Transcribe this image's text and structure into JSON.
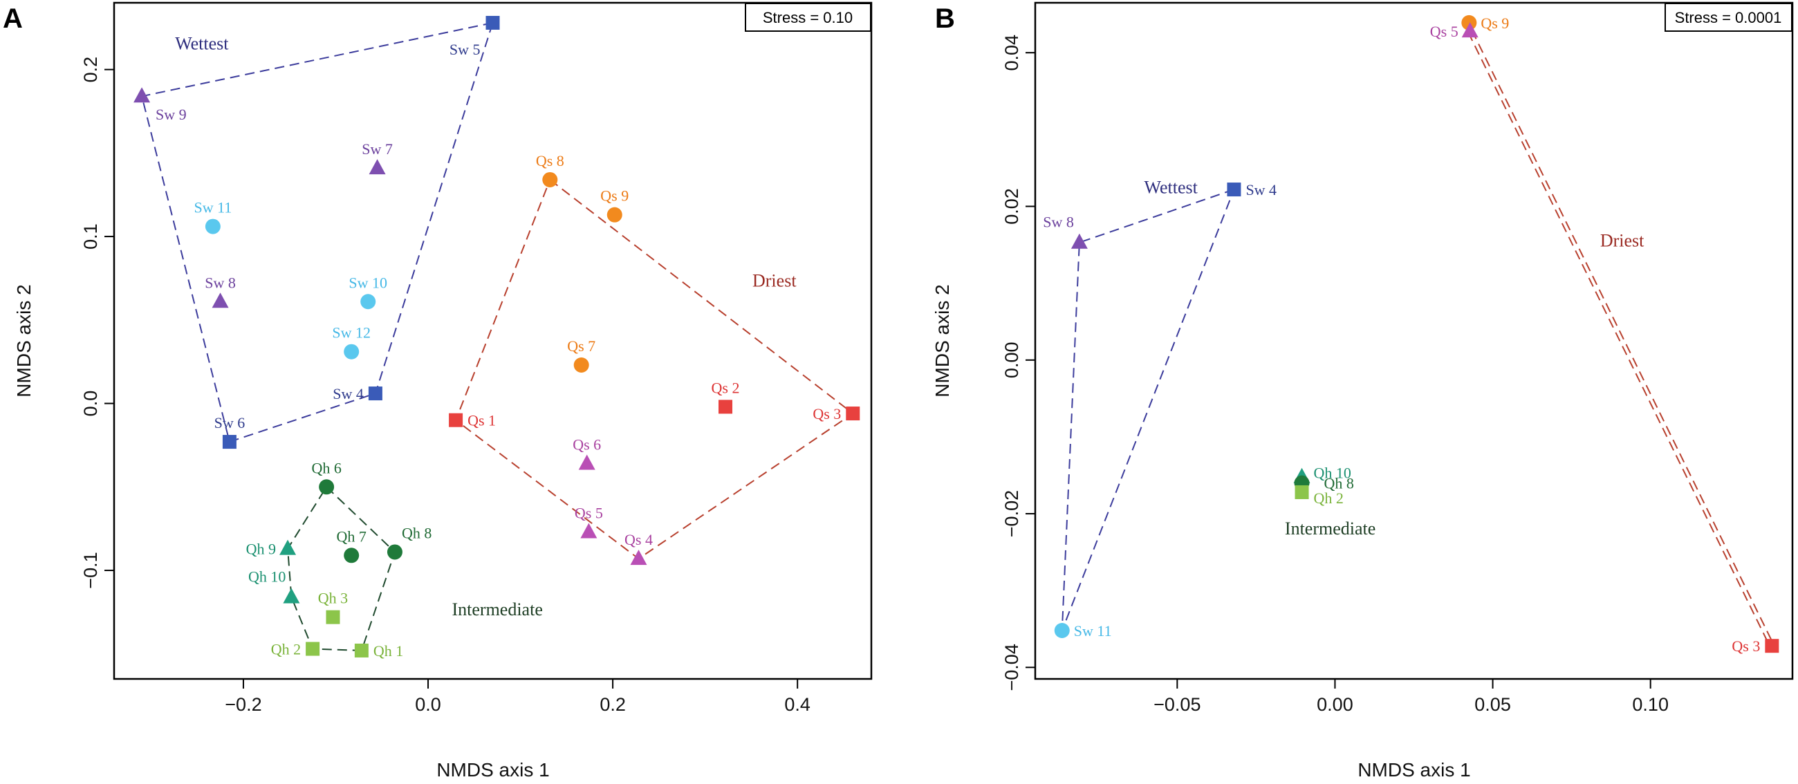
{
  "figure": {
    "panels": [
      "A",
      "B"
    ]
  },
  "chart_data": [
    {
      "type": "scatter",
      "panel": "A",
      "xlabel": "NMDS axis 1",
      "ylabel": "NMDS axis 2",
      "stress": "Stress = 0.10",
      "xlim": [
        -0.34,
        0.48
      ],
      "ylim": [
        -0.165,
        0.24
      ],
      "xticks": [
        -0.2,
        0.0,
        0.2,
        0.4
      ],
      "yticks": [
        -0.1,
        0.0,
        0.1,
        0.2
      ],
      "xtick_labels": [
        "−0.2",
        "0.0",
        "0.2",
        "0.4"
      ],
      "ytick_labels": [
        "−0.1",
        "0.0",
        "0.1",
        "0.2"
      ],
      "points": [
        {
          "label": "Sw 5",
          "x": 0.07,
          "y": 0.228,
          "shape": "square",
          "color": "#3a5bb8",
          "tcolor": "#2e3a8c",
          "pos": "bl"
        },
        {
          "label": "Sw 9",
          "x": -0.31,
          "y": 0.184,
          "shape": "triangle",
          "color": "#7e4fb0",
          "tcolor": "#6a3f9c",
          "pos": "br"
        },
        {
          "label": "Sw 7",
          "x": -0.055,
          "y": 0.141,
          "shape": "triangle",
          "color": "#7e4fb0",
          "tcolor": "#6a3f9c",
          "pos": "t"
        },
        {
          "label": "Sw 11",
          "x": -0.233,
          "y": 0.106,
          "shape": "circle",
          "color": "#5ac8ee",
          "tcolor": "#45b8e6",
          "pos": "t"
        },
        {
          "label": "Sw 8",
          "x": -0.225,
          "y": 0.061,
          "shape": "triangle",
          "color": "#7e4fb0",
          "tcolor": "#6a3f9c",
          "pos": "t"
        },
        {
          "label": "Sw 10",
          "x": -0.065,
          "y": 0.061,
          "shape": "circle",
          "color": "#5ac8ee",
          "tcolor": "#45b8e6",
          "pos": "t"
        },
        {
          "label": "Sw 12",
          "x": -0.083,
          "y": 0.031,
          "shape": "circle",
          "color": "#5ac8ee",
          "tcolor": "#45b8e6",
          "pos": "t"
        },
        {
          "label": "Sw 4",
          "x": -0.057,
          "y": 0.006,
          "shape": "square",
          "color": "#3a5bb8",
          "tcolor": "#2e3a8c",
          "pos": "l"
        },
        {
          "label": "Sw 6",
          "x": -0.215,
          "y": -0.023,
          "shape": "square",
          "color": "#3a5bb8",
          "tcolor": "#2e3a8c",
          "pos": "t"
        },
        {
          "label": "Qs 8",
          "x": 0.132,
          "y": 0.134,
          "shape": "circle",
          "color": "#f28a1e",
          "tcolor": "#ec7a14",
          "pos": "t"
        },
        {
          "label": "Qs 9",
          "x": 0.202,
          "y": 0.113,
          "shape": "circle",
          "color": "#f28a1e",
          "tcolor": "#ec7a14",
          "pos": "t"
        },
        {
          "label": "Qs 7",
          "x": 0.166,
          "y": 0.023,
          "shape": "circle",
          "color": "#f28a1e",
          "tcolor": "#ec7a14",
          "pos": "t"
        },
        {
          "label": "Qs 2",
          "x": 0.322,
          "y": -0.002,
          "shape": "square",
          "color": "#e8413e",
          "tcolor": "#dd3333",
          "pos": "t"
        },
        {
          "label": "Qs 3",
          "x": 0.46,
          "y": -0.006,
          "shape": "square",
          "color": "#e8413e",
          "tcolor": "#dd3333",
          "pos": "l"
        },
        {
          "label": "Qs 1",
          "x": 0.03,
          "y": -0.01,
          "shape": "square",
          "color": "#e8413e",
          "tcolor": "#dd3333",
          "pos": "r"
        },
        {
          "label": "Qs 6",
          "x": 0.172,
          "y": -0.036,
          "shape": "triangle",
          "color": "#b94fb5",
          "tcolor": "#a8409f",
          "pos": "t"
        },
        {
          "label": "Qs 5",
          "x": 0.174,
          "y": -0.077,
          "shape": "triangle",
          "color": "#b94fb5",
          "tcolor": "#a8409f",
          "pos": "t"
        },
        {
          "label": "Qs 4",
          "x": 0.228,
          "y": -0.093,
          "shape": "triangle",
          "color": "#b94fb5",
          "tcolor": "#a8409f",
          "pos": "t"
        },
        {
          "label": "Qh 6",
          "x": -0.11,
          "y": -0.05,
          "shape": "circle",
          "color": "#1f7a3a",
          "tcolor": "#1f6a34",
          "pos": "t"
        },
        {
          "label": "Qh 7",
          "x": -0.083,
          "y": -0.091,
          "shape": "circle",
          "color": "#1f7a3a",
          "tcolor": "#1f6a34",
          "pos": "t"
        },
        {
          "label": "Qh 8",
          "x": -0.036,
          "y": -0.089,
          "shape": "circle",
          "color": "#1f7a3a",
          "tcolor": "#1f6a34",
          "pos": "tr"
        },
        {
          "label": "Qh 9",
          "x": -0.152,
          "y": -0.087,
          "shape": "triangle",
          "color": "#20a080",
          "tcolor": "#1a9070",
          "pos": "l"
        },
        {
          "label": "Qh 10",
          "x": -0.148,
          "y": -0.116,
          "shape": "triangle",
          "color": "#20a080",
          "tcolor": "#1a9070",
          "pos": "tl"
        },
        {
          "label": "Qh 3",
          "x": -0.103,
          "y": -0.128,
          "shape": "square",
          "color": "#8cc54a",
          "tcolor": "#7ab33a",
          "pos": "t"
        },
        {
          "label": "Qh 2",
          "x": -0.125,
          "y": -0.147,
          "shape": "square",
          "color": "#8cc54a",
          "tcolor": "#7ab33a",
          "pos": "l"
        },
        {
          "label": "Qh 1",
          "x": -0.072,
          "y": -0.148,
          "shape": "square",
          "color": "#8cc54a",
          "tcolor": "#7ab33a",
          "pos": "r"
        }
      ],
      "hulls": [
        {
          "color": "#3c3c9c",
          "points": [
            "Sw 5",
            "Sw 9",
            "Sw 6",
            "Sw 4"
          ]
        },
        {
          "color": "#b8402e",
          "points": [
            "Qs 8",
            "Qs 3",
            "Qs 4",
            "Qs 1"
          ]
        },
        {
          "color": "#1f4a2e",
          "points": [
            "Qh 6",
            "Qh 8",
            "Qh 1",
            "Qh 2",
            "Qh 10",
            "Qh 9"
          ]
        }
      ],
      "groups": [
        {
          "label": "Wettest",
          "x": -0.245,
          "y": 0.212,
          "color": "#2e2e7e"
        },
        {
          "label": "Driest",
          "x": 0.375,
          "y": 0.07,
          "color": "#9a2a22"
        },
        {
          "label": "Intermediate",
          "x": 0.075,
          "y": -0.127,
          "color": "#1e3e24"
        }
      ]
    },
    {
      "type": "scatter",
      "panel": "B",
      "xlabel": "NMDS axis 1",
      "ylabel": "NMDS axis 2",
      "stress": "Stress = 0.0001",
      "xlim": [
        -0.095,
        0.145
      ],
      "ylim": [
        -0.0415,
        0.0465
      ],
      "xticks": [
        -0.05,
        0.0,
        0.05,
        0.1
      ],
      "yticks": [
        -0.04,
        -0.02,
        0.0,
        0.02,
        0.04
      ],
      "xtick_labels": [
        "−0.05",
        "0.00",
        "0.05",
        "0.10"
      ],
      "ytick_labels": [
        "−0.04",
        "−0.02",
        "0.00",
        "0.02",
        "0.04"
      ],
      "points": [
        {
          "label": "Qs 9",
          "x": 0.0425,
          "y": 0.0439,
          "shape": "circle",
          "color": "#f28a1e",
          "tcolor": "#ec7a14",
          "pos": "r"
        },
        {
          "label": "Qs 5",
          "x": 0.0428,
          "y": 0.0428,
          "shape": "triangle",
          "color": "#b94fb5",
          "tcolor": "#a8409f",
          "pos": "l"
        },
        {
          "label": "Sw 4",
          "x": -0.032,
          "y": 0.0222,
          "shape": "square",
          "color": "#3a5bb8",
          "tcolor": "#2e3a8c",
          "pos": "r"
        },
        {
          "label": "Sw 8",
          "x": -0.081,
          "y": 0.0153,
          "shape": "triangle",
          "color": "#7e4fb0",
          "tcolor": "#6a3f9c",
          "pos": "tl"
        },
        {
          "label": "Qh 10",
          "x": -0.0105,
          "y": -0.0152,
          "shape": "triangle",
          "color": "#20a080",
          "tcolor": "#1a9070",
          "pos": "rb"
        },
        {
          "label": "Qh 8",
          "x": -0.0105,
          "y": -0.016,
          "shape": "circle",
          "color": "#1f7a3a",
          "tcolor": "#1f6a34",
          "pos": "r2"
        },
        {
          "label": "Qh 2",
          "x": -0.0105,
          "y": -0.0172,
          "shape": "square",
          "color": "#8cc54a",
          "tcolor": "#7ab33a",
          "pos": "r3"
        },
        {
          "label": "Sw 11",
          "x": -0.0865,
          "y": -0.0352,
          "shape": "circle",
          "color": "#5ac8ee",
          "tcolor": "#45b8e6",
          "pos": "r"
        },
        {
          "label": "Qs 3",
          "x": 0.1385,
          "y": -0.0372,
          "shape": "square",
          "color": "#e8413e",
          "tcolor": "#dd3333",
          "pos": "l"
        }
      ],
      "hulls": [
        {
          "color": "#3c3c9c",
          "points": [
            "Sw 4",
            "Sw 8",
            "Sw 11"
          ]
        },
        {
          "color": "#b8402e",
          "double": true,
          "points": [
            "Qs 5",
            "Qs 3"
          ]
        }
      ],
      "groups": [
        {
          "label": "Wettest",
          "x": -0.052,
          "y": 0.0217,
          "color": "#2e2e7e"
        },
        {
          "label": "Driest",
          "x": 0.091,
          "y": 0.0148,
          "color": "#9a2a22"
        },
        {
          "label": "Intermediate",
          "x": -0.0015,
          "y": -0.0227,
          "color": "#1e3e24"
        }
      ]
    }
  ]
}
